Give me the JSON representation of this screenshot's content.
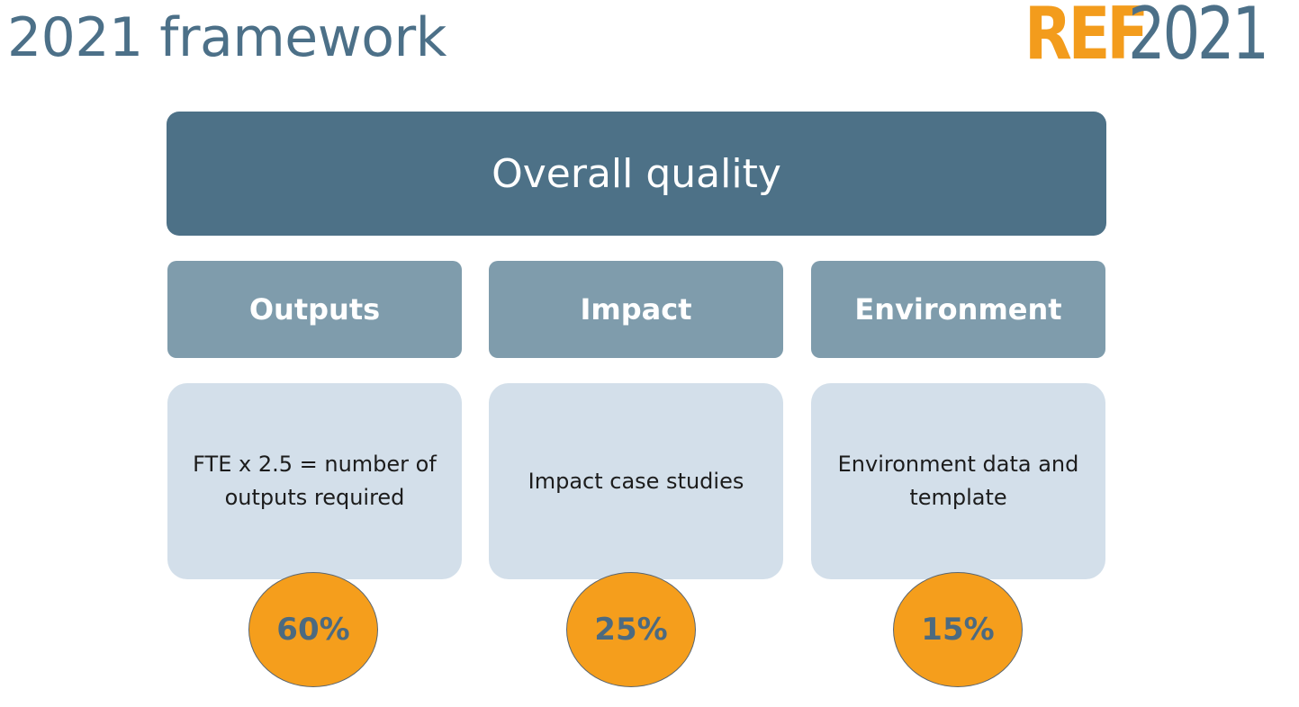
{
  "slide": {
    "title": "2021 framework"
  },
  "logo": {
    "brand": "REF",
    "year": "2021"
  },
  "diagram": {
    "overall": "Overall quality",
    "columns": [
      {
        "category": "Outputs",
        "description": "FTE x 2.5 = number of outputs required",
        "weight": "60%"
      },
      {
        "category": "Impact",
        "description": "Impact case studies",
        "weight": "25%"
      },
      {
        "category": "Environment",
        "description": "Environment data and template",
        "weight": "15%"
      }
    ]
  },
  "colors": {
    "title": "#4c7088",
    "accent_orange": "#f39c1c",
    "overall_fill": "#4d7187",
    "category_fill": "#7f9cac",
    "description_fill": "#d3dfea"
  }
}
